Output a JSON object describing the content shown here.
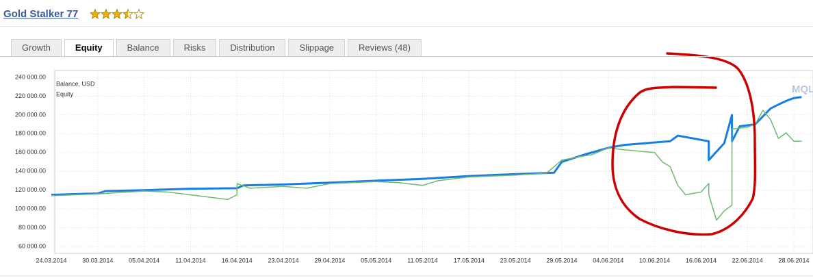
{
  "header": {
    "title": "Gold Stalker 77",
    "rating": 3.5,
    "rating_max": 5
  },
  "tabs": [
    "Growth",
    "Equity",
    "Balance",
    "Risks",
    "Distribution",
    "Slippage",
    "Reviews (48)"
  ],
  "active_tab": 1,
  "chart_data": {
    "type": "line",
    "watermark": "MQL",
    "ylim": [
      60000,
      240000
    ],
    "yticks": [
      {
        "value": 60000,
        "label": "60 000.00"
      },
      {
        "value": 80000,
        "label": "80 000.00"
      },
      {
        "value": 100000,
        "label": "100 000.00"
      },
      {
        "value": 120000,
        "label": "120 000.00"
      },
      {
        "value": 140000,
        "label": "140 000.00"
      },
      {
        "value": 160000,
        "label": "160 000.00"
      },
      {
        "value": 180000,
        "label": "180 000.00"
      },
      {
        "value": 200000,
        "label": "200 000.00"
      },
      {
        "value": 220000,
        "label": "220 000.00"
      },
      {
        "value": 240000,
        "label": "240 000.00"
      }
    ],
    "xticks": [
      "24.03.2014",
      "30.03.2014",
      "05.04.2014",
      "11.04.2014",
      "16.04.2014",
      "23.04.2014",
      "29.04.2014",
      "05.05.2014",
      "11.05.2014",
      "17.05.2014",
      "23.05.2014",
      "29.05.2014",
      "04.06.2014",
      "10.06.2014",
      "16.06.2014",
      "22.06.2014",
      "28.06.2014"
    ],
    "grid": true,
    "series": [
      {
        "name": "Balance, USD",
        "color": "#1a7de0",
        "width": 3,
        "x": [
          "24.03.2014",
          "30.03.2014",
          "31.03.2014",
          "05.04.2014",
          "11.04.2014",
          "16.04.2014",
          "17.04.2014",
          "23.04.2014",
          "29.04.2014",
          "05.05.2014",
          "11.05.2014",
          "17.05.2014",
          "23.05.2014",
          "28.05.2014",
          "29.05.2014",
          "01.06.2014",
          "04.06.2014",
          "06.06.2014",
          "12.06.2014",
          "13.06.2014",
          "17.06.2014",
          "17.06.2014",
          "19.06.2014",
          "20.06.2014",
          "20.06.2014",
          "21.06.2014",
          "23.06.2014",
          "25.06.2014",
          "27.06.2014",
          "28.06.2014",
          "29.06.2014"
        ],
        "values": [
          115000,
          116500,
          119000,
          120000,
          121500,
          122000,
          125000,
          126000,
          128000,
          130000,
          132000,
          135000,
          137000,
          138500,
          150000,
          158000,
          165000,
          168000,
          172000,
          178000,
          172000,
          152000,
          170000,
          200000,
          172000,
          188000,
          190000,
          207000,
          215000,
          218000,
          219000
        ]
      },
      {
        "name": "Equity",
        "color": "#6fb86f",
        "width": 1.5,
        "x": [
          "24.03.2014",
          "30.03.2014",
          "05.04.2014",
          "08.04.2014",
          "11.04.2014",
          "15.04.2014",
          "16.04.2014",
          "16.04.2014",
          "18.04.2014",
          "23.04.2014",
          "26.04.2014",
          "29.04.2014",
          "05.05.2014",
          "08.05.2014",
          "11.05.2014",
          "13.05.2014",
          "17.05.2014",
          "23.05.2014",
          "27.05.2014",
          "28.05.2014",
          "29.05.2014",
          "02.06.2014",
          "04.06.2014",
          "06.06.2014",
          "10.06.2014",
          "11.06.2014",
          "12.06.2014",
          "13.06.2014",
          "14.06.2014",
          "16.06.2014",
          "17.06.2014",
          "17.06.2014",
          "18.06.2014",
          "19.06.2014",
          "20.06.2014",
          "20.06.2014",
          "22.06.2014",
          "23.06.2014",
          "24.06.2014",
          "25.06.2014",
          "26.06.2014",
          "27.06.2014",
          "28.06.2014",
          "29.06.2014"
        ],
        "values": [
          114000,
          116000,
          119000,
          118000,
          115000,
          110000,
          115000,
          127000,
          122000,
          124000,
          122000,
          127000,
          129000,
          128000,
          125000,
          130000,
          134000,
          136000,
          138000,
          145000,
          152000,
          158000,
          165000,
          163000,
          160000,
          150000,
          145000,
          125000,
          115000,
          118000,
          127000,
          115000,
          88000,
          98000,
          104000,
          185000,
          187000,
          190000,
          205000,
          195000,
          175000,
          181000,
          172000,
          172000
        ]
      }
    ]
  }
}
